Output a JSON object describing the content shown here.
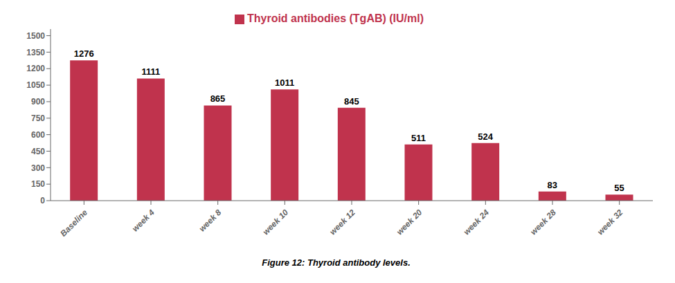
{
  "chart_data": {
    "type": "bar",
    "categories": [
      "Baseline",
      "week 4",
      "week 8",
      "week 10",
      "week 12",
      "week 20",
      "week 24",
      "week 28",
      "week 32"
    ],
    "series": [
      {
        "name": "Thyroid antibodies (TgAB) (IU/ml)",
        "color": "#C0334D",
        "values": [
          1276,
          1111,
          865,
          1011,
          845,
          511,
          524,
          83,
          55
        ]
      }
    ],
    "ylim": [
      0,
      1560
    ],
    "yticks": [
      0,
      150,
      300,
      450,
      600,
      750,
      900,
      1050,
      1200,
      1350,
      1500
    ],
    "grid": false,
    "legend": "top",
    "data_labels": true,
    "caption": "Figure 12: Thyroid antibody levels."
  }
}
